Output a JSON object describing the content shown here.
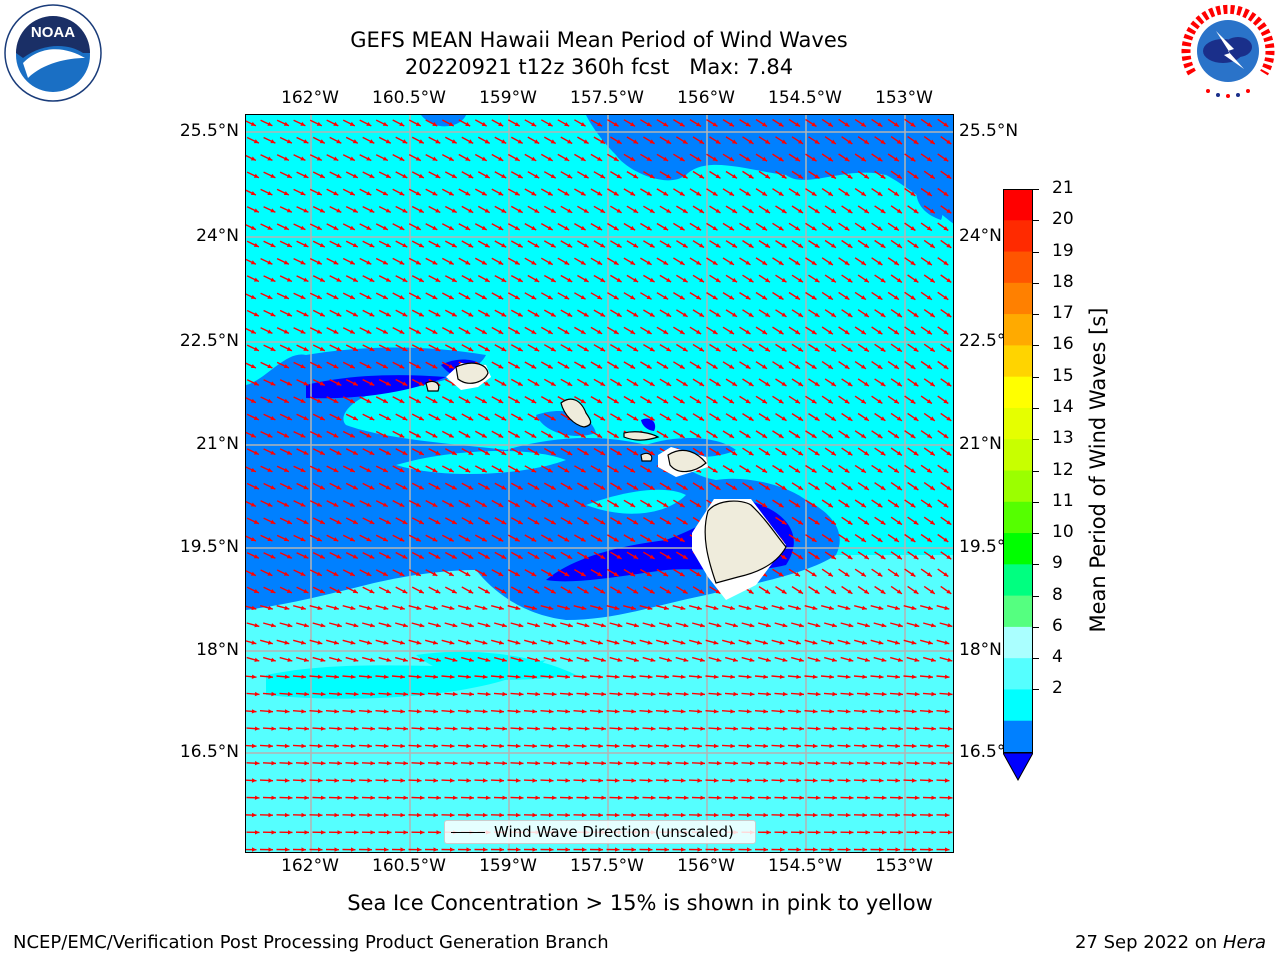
{
  "title": {
    "line1": "GEFS MEAN Hawaii Mean Period of Wind Waves",
    "line2": "20220921 t12z 360h fcst   Max: 7.84"
  },
  "logos": {
    "left": {
      "name": "NOAA",
      "ring_text": "NATIONAL OCEANIC AND ATMOSPHERIC ADMINISTRATION · U.S. DEPARTMENT OF COMMERCE"
    },
    "right": {
      "name": "NATIONAL WEATHER SERVICE"
    }
  },
  "axes": {
    "lon_labels": [
      "162°W",
      "160.5°W",
      "159°W",
      "157.5°W",
      "156°W",
      "154.5°W",
      "153°W"
    ],
    "lat_labels_left": [
      "25.5°N",
      "24°N",
      "22.5°N",
      "21°N",
      "19.5°N",
      "18°N",
      "16.5°N"
    ],
    "lat_labels_right": [
      "25.5°N",
      "24°N",
      "22.5°N",
      "21°N",
      "19.5°N",
      "18°N",
      "16.5°N"
    ]
  },
  "colorbar": {
    "label": "Mean Period of Wind Waves [s]",
    "ticks": [
      "21",
      "20",
      "19",
      "18",
      "17",
      "16",
      "15",
      "14",
      "13",
      "12",
      "11",
      "10",
      "9",
      "8",
      "6",
      "4",
      "2"
    ],
    "colors": [
      "#ff0000",
      "#ff2a00",
      "#ff5500",
      "#ff8000",
      "#ffaa00",
      "#ffd400",
      "#ffff00",
      "#e5ff00",
      "#c8ff00",
      "#9bff00",
      "#55ff00",
      "#00ff00",
      "#00ff80",
      "#55ff80",
      "#aaffff",
      "#55ffff",
      "#00ffff",
      "#0080ff",
      "#0000ff"
    ]
  },
  "map_legend": {
    "label": "Wind Wave Direction (unscaled)"
  },
  "note": "Sea Ice Concentration > 15% is shown in pink to yellow",
  "footer": {
    "left": "NCEP/EMC/Verification Post Processing Product Generation Branch",
    "right_date": "27 Sep 2022 on ",
    "right_host": "Hera"
  },
  "colors": {
    "arrow": "#ff0000",
    "land": "#efecdc",
    "grid": "#b4b4b4",
    "field_light": "#55ffff",
    "field_cyan": "#00ffff",
    "field_mid": "#0080ff",
    "field_dark": "#0000ff"
  }
}
